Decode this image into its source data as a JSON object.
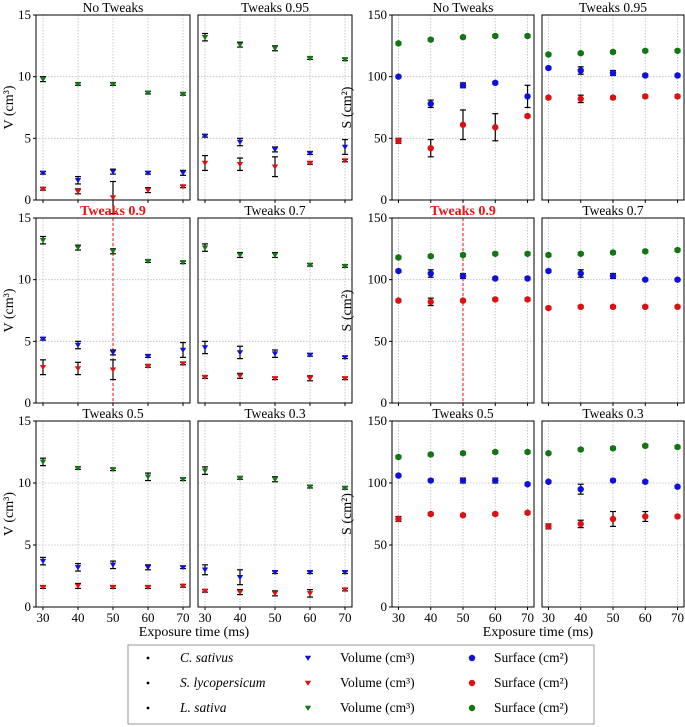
{
  "figure": {
    "x_axis_label": "Exposure time (ms)",
    "volume_axis_label": "V (cm³)",
    "surface_axis_label": "S (cm²)"
  },
  "colors": {
    "C. sativus": "#1010dd",
    "S. lycopersicum": "#dd1111",
    "L. sativa": "#117711",
    "error": "#000000",
    "grid": "#bdbdbd",
    "highlight": "#ee1111"
  },
  "legend": {
    "rows": [
      {
        "species": "C. sativus",
        "volume_label": "Volume (cm³)",
        "surface_label": "Surface (cm²)"
      },
      {
        "species": "S. lycopersicum",
        "volume_label": "Volume (cm³)",
        "surface_label": "Surface (cm²)"
      },
      {
        "species": "L. sativa",
        "volume_label": "Volume (cm³)",
        "surface_label": "Surface (cm²)"
      }
    ]
  },
  "chart_data": [
    {
      "type": "scatter",
      "measure": "volume",
      "title": "No Tweaks",
      "highlight": false,
      "x": [
        30,
        40,
        50,
        60,
        70
      ],
      "xlim": [
        28,
        72
      ],
      "ylim": [
        0,
        15
      ],
      "yticks": [
        0,
        5,
        10,
        15
      ],
      "series": [
        {
          "name": "C. sativus",
          "values": [
            2.2,
            1.6,
            2.3,
            2.2,
            2.2
          ],
          "errors": [
            0.1,
            0.3,
            0.2,
            0.1,
            0.2
          ]
        },
        {
          "name": "S. lycopersicum",
          "values": [
            0.9,
            0.7,
            0.2,
            0.8,
            1.1
          ],
          "errors": [
            0.1,
            0.2,
            1.3,
            0.2,
            0.1
          ]
        },
        {
          "name": "L. sativa",
          "values": [
            9.8,
            9.4,
            9.4,
            8.7,
            8.6
          ],
          "errors": [
            0.2,
            0.1,
            0.1,
            0.1,
            0.1
          ]
        }
      ]
    },
    {
      "type": "scatter",
      "measure": "volume",
      "title": "Tweaks 0.95",
      "highlight": false,
      "x": [
        30,
        40,
        50,
        60,
        70
      ],
      "xlim": [
        28,
        72
      ],
      "ylim": [
        0,
        15
      ],
      "yticks": [
        0,
        5,
        10,
        15
      ],
      "series": [
        {
          "name": "C. sativus",
          "values": [
            5.2,
            4.7,
            4.1,
            3.8,
            4.3
          ],
          "errors": [
            0.1,
            0.3,
            0.2,
            0.1,
            0.6
          ]
        },
        {
          "name": "S. lycopersicum",
          "values": [
            3.0,
            2.9,
            2.7,
            3.0,
            3.2
          ],
          "errors": [
            0.6,
            0.5,
            0.8,
            0.1,
            0.1
          ]
        },
        {
          "name": "L. sativa",
          "values": [
            13.2,
            12.6,
            12.3,
            11.5,
            11.4
          ],
          "errors": [
            0.3,
            0.2,
            0.2,
            0.1,
            0.1
          ]
        }
      ]
    },
    {
      "type": "scatter",
      "measure": "surface",
      "title": "No Tweaks",
      "highlight": false,
      "x": [
        30,
        40,
        50,
        60,
        70
      ],
      "xlim": [
        28,
        72
      ],
      "ylim": [
        0,
        150
      ],
      "yticks": [
        0,
        50,
        100,
        150
      ],
      "series": [
        {
          "name": "C. sativus",
          "values": [
            100,
            78,
            93,
            95,
            84
          ],
          "errors": [
            1,
            3,
            2,
            1,
            9
          ]
        },
        {
          "name": "S. lycopersicum",
          "values": [
            48,
            42,
            61,
            59,
            68
          ],
          "errors": [
            2,
            7,
            12,
            11,
            1
          ]
        },
        {
          "name": "L. sativa",
          "values": [
            127,
            130,
            132,
            133,
            133
          ],
          "errors": [
            1,
            1,
            1,
            1,
            1
          ]
        }
      ]
    },
    {
      "type": "scatter",
      "measure": "surface",
      "title": "Tweaks 0.95",
      "highlight": false,
      "x": [
        30,
        40,
        50,
        60,
        70
      ],
      "xlim": [
        28,
        72
      ],
      "ylim": [
        0,
        150
      ],
      "yticks": [
        0,
        50,
        100,
        150
      ],
      "series": [
        {
          "name": "C. sativus",
          "values": [
            107,
            105,
            103,
            101,
            101
          ],
          "errors": [
            1,
            3,
            2,
            1,
            1
          ]
        },
        {
          "name": "S. lycopersicum",
          "values": [
            83,
            82,
            83,
            84,
            84
          ],
          "errors": [
            1,
            3,
            1,
            1,
            1
          ]
        },
        {
          "name": "L. sativa",
          "values": [
            118,
            119,
            120,
            121,
            121
          ],
          "errors": [
            1,
            1,
            1,
            1,
            1
          ]
        }
      ]
    },
    {
      "type": "scatter",
      "measure": "volume",
      "title": "Tweaks 0.9",
      "highlight": true,
      "highlight_x": 50,
      "x": [
        30,
        40,
        50,
        60,
        70
      ],
      "xlim": [
        28,
        72
      ],
      "ylim": [
        0,
        15
      ],
      "yticks": [
        0,
        5,
        10,
        15
      ],
      "series": [
        {
          "name": "C. sativus",
          "values": [
            5.2,
            4.7,
            4.1,
            3.8,
            4.3
          ],
          "errors": [
            0.1,
            0.3,
            0.2,
            0.1,
            0.6
          ]
        },
        {
          "name": "S. lycopersicum",
          "values": [
            2.9,
            2.8,
            2.7,
            3.0,
            3.2
          ],
          "errors": [
            0.6,
            0.5,
            0.8,
            0.1,
            0.1
          ]
        },
        {
          "name": "L. sativa",
          "values": [
            13.2,
            12.6,
            12.3,
            11.5,
            11.4
          ],
          "errors": [
            0.3,
            0.2,
            0.2,
            0.1,
            0.1
          ]
        }
      ]
    },
    {
      "type": "scatter",
      "measure": "volume",
      "title": "Tweaks 0.7",
      "highlight": false,
      "x": [
        30,
        40,
        50,
        60,
        70
      ],
      "xlim": [
        28,
        72
      ],
      "ylim": [
        0,
        15
      ],
      "yticks": [
        0,
        5,
        10,
        15
      ],
      "series": [
        {
          "name": "C. sativus",
          "values": [
            4.5,
            4.1,
            4.0,
            3.9,
            3.7
          ],
          "errors": [
            0.5,
            0.5,
            0.3,
            0.1,
            0.1
          ]
        },
        {
          "name": "S. lycopersicum",
          "values": [
            2.1,
            2.2,
            2.0,
            2.0,
            2.0
          ],
          "errors": [
            0.1,
            0.2,
            0.1,
            0.2,
            0.1
          ]
        },
        {
          "name": "L. sativa",
          "values": [
            12.6,
            12.0,
            12.0,
            11.2,
            11.1
          ],
          "errors": [
            0.3,
            0.2,
            0.2,
            0.1,
            0.1
          ]
        }
      ]
    },
    {
      "type": "scatter",
      "measure": "surface",
      "title": "Tweaks 0.9",
      "highlight": true,
      "highlight_x": 50,
      "x": [
        30,
        40,
        50,
        60,
        70
      ],
      "xlim": [
        28,
        72
      ],
      "ylim": [
        0,
        150
      ],
      "yticks": [
        0,
        50,
        100,
        150
      ],
      "series": [
        {
          "name": "C. sativus",
          "values": [
            107,
            105,
            103,
            101,
            101
          ],
          "errors": [
            1,
            3,
            2,
            1,
            1
          ]
        },
        {
          "name": "S. lycopersicum",
          "values": [
            83,
            82,
            83,
            84,
            84
          ],
          "errors": [
            1,
            3,
            1,
            1,
            1
          ]
        },
        {
          "name": "L. sativa",
          "values": [
            118,
            119,
            120,
            121,
            121
          ],
          "errors": [
            1,
            1,
            1,
            1,
            1
          ]
        }
      ]
    },
    {
      "type": "scatter",
      "measure": "surface",
      "title": "Tweaks 0.7",
      "highlight": false,
      "x": [
        30,
        40,
        50,
        60,
        70
      ],
      "xlim": [
        28,
        72
      ],
      "ylim": [
        0,
        150
      ],
      "yticks": [
        0,
        50,
        100,
        150
      ],
      "series": [
        {
          "name": "C. sativus",
          "values": [
            107,
            105,
            103,
            100,
            100
          ],
          "errors": [
            1,
            3,
            2,
            1,
            1
          ]
        },
        {
          "name": "S. lycopersicum",
          "values": [
            77,
            78,
            78,
            78,
            78
          ],
          "errors": [
            1,
            1,
            1,
            1,
            1
          ]
        },
        {
          "name": "L. sativa",
          "values": [
            120,
            121,
            122,
            123,
            124
          ],
          "errors": [
            1,
            1,
            1,
            1,
            1
          ]
        }
      ]
    },
    {
      "type": "scatter",
      "measure": "volume",
      "title": "Tweaks 0.5",
      "highlight": false,
      "x": [
        30,
        40,
        50,
        60,
        70
      ],
      "xlim": [
        28,
        72
      ],
      "ylim": [
        0,
        15
      ],
      "yticks": [
        0,
        5,
        10,
        15
      ],
      "series": [
        {
          "name": "C. sativus",
          "values": [
            3.7,
            3.2,
            3.4,
            3.2,
            3.2
          ],
          "errors": [
            0.3,
            0.3,
            0.3,
            0.2,
            0.1
          ]
        },
        {
          "name": "S. lycopersicum",
          "values": [
            1.6,
            1.7,
            1.6,
            1.6,
            1.7
          ],
          "errors": [
            0.1,
            0.2,
            0.1,
            0.1,
            0.1
          ]
        },
        {
          "name": "L. sativa",
          "values": [
            11.7,
            11.2,
            11.1,
            10.5,
            10.3
          ],
          "errors": [
            0.3,
            0.1,
            0.1,
            0.3,
            0.1
          ]
        }
      ]
    },
    {
      "type": "scatter",
      "measure": "volume",
      "title": "Tweaks 0.3",
      "highlight": false,
      "x": [
        30,
        40,
        50,
        60,
        70
      ],
      "xlim": [
        28,
        72
      ],
      "ylim": [
        0,
        15
      ],
      "yticks": [
        0,
        5,
        10,
        15
      ],
      "series": [
        {
          "name": "C. sativus",
          "values": [
            3.0,
            2.4,
            2.8,
            2.8,
            2.8
          ],
          "errors": [
            0.4,
            0.6,
            0.1,
            0.1,
            0.1
          ]
        },
        {
          "name": "S. lycopersicum",
          "values": [
            1.3,
            1.2,
            1.1,
            1.1,
            1.4
          ],
          "errors": [
            0.1,
            0.2,
            0.2,
            0.3,
            0.1
          ]
        },
        {
          "name": "L. sativa",
          "values": [
            11.0,
            10.4,
            10.3,
            9.7,
            9.6
          ],
          "errors": [
            0.3,
            0.1,
            0.2,
            0.1,
            0.1
          ]
        }
      ]
    },
    {
      "type": "scatter",
      "measure": "surface",
      "title": "Tweaks 0.5",
      "highlight": false,
      "x": [
        30,
        40,
        50,
        60,
        70
      ],
      "xlim": [
        28,
        72
      ],
      "ylim": [
        0,
        150
      ],
      "yticks": [
        0,
        50,
        100,
        150
      ],
      "series": [
        {
          "name": "C. sativus",
          "values": [
            106,
            102,
            102,
            102,
            99
          ],
          "errors": [
            1,
            1,
            2,
            2,
            1
          ]
        },
        {
          "name": "S. lycopersicum",
          "values": [
            71,
            75,
            74,
            75,
            76
          ],
          "errors": [
            2,
            1,
            1,
            1,
            1
          ]
        },
        {
          "name": "L. sativa",
          "values": [
            121,
            123,
            124,
            125,
            125
          ],
          "errors": [
            1,
            1,
            1,
            1,
            1
          ]
        }
      ]
    },
    {
      "type": "scatter",
      "measure": "surface",
      "title": "Tweaks 0.3",
      "highlight": false,
      "x": [
        30,
        40,
        50,
        60,
        70
      ],
      "xlim": [
        28,
        72
      ],
      "ylim": [
        0,
        150
      ],
      "yticks": [
        0,
        50,
        100,
        150
      ],
      "series": [
        {
          "name": "C. sativus",
          "values": [
            101,
            95,
            102,
            101,
            97
          ],
          "errors": [
            1,
            4,
            1,
            1,
            1
          ]
        },
        {
          "name": "S. lycopersicum",
          "values": [
            65,
            67,
            71,
            73,
            73
          ],
          "errors": [
            2,
            3,
            6,
            4,
            1
          ]
        },
        {
          "name": "L. sativa",
          "values": [
            124,
            127,
            128,
            130,
            129
          ],
          "errors": [
            1,
            1,
            1,
            1,
            1
          ]
        }
      ]
    }
  ]
}
